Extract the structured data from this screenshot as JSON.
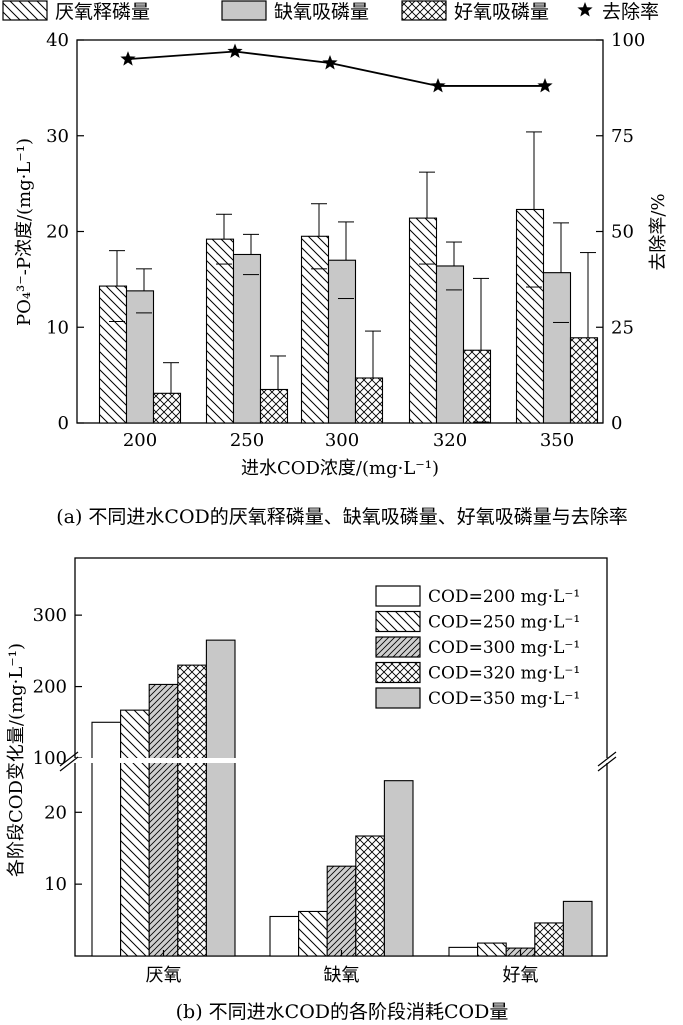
{
  "chart_data": [
    {
      "type": "bar",
      "caption": "(a) 不同进水COD的厌氧释磷量、缺氧吸磷量、好氧吸磷量与去除率",
      "xlabel": "进水COD浓度/(mg·L⁻¹)",
      "ylabel": "PO₄³⁻-P浓度/(mg·L⁻¹)",
      "y2label": "去除率/%",
      "categories": [
        "200",
        "250",
        "300",
        "320",
        "350"
      ],
      "ylim": [
        0,
        40
      ],
      "yticks": [
        0,
        10,
        20,
        30,
        40
      ],
      "y2lim": [
        0,
        100
      ],
      "y2ticks": [
        0,
        25,
        50,
        75,
        100
      ],
      "legend_position": "top",
      "series": [
        {
          "name": "厌氧释磷量",
          "values": [
            14.3,
            19.2,
            19.5,
            21.4,
            22.3
          ],
          "error": [
            3.7,
            2.6,
            3.4,
            4.8,
            8.1
          ],
          "pattern": "diagonal-hatch"
        },
        {
          "name": "缺氧吸磷量",
          "values": [
            13.8,
            17.6,
            17.0,
            16.4,
            15.7
          ],
          "error": [
            2.3,
            2.1,
            4.0,
            2.5,
            5.2
          ],
          "pattern": "gray-fill"
        },
        {
          "name": "好氧吸磷量",
          "values": [
            3.1,
            3.5,
            4.7,
            7.6,
            8.9
          ],
          "error": [
            3.2,
            3.5,
            4.9,
            7.5,
            8.9
          ],
          "pattern": "cross-hatch"
        }
      ],
      "line_series": {
        "name": "去除率",
        "axis": "right",
        "marker": "★",
        "values": [
          95,
          97,
          94,
          88,
          88
        ]
      }
    },
    {
      "type": "bar",
      "caption": "(b) 不同进水COD的各阶段消耗COD量",
      "ylabel": "各阶段COD变化量/(mg·L⁻¹)",
      "categories": [
        "厌氧",
        "缺氧",
        "好氧"
      ],
      "broken_axis": true,
      "lower_ylim": [
        0,
        27
      ],
      "lower_yticks": [
        10,
        20
      ],
      "upper_ylim": [
        100,
        380
      ],
      "upper_yticks": [
        100,
        200,
        300
      ],
      "legend_position": "top-right",
      "series": [
        {
          "name": "COD=200 mg·L⁻¹",
          "values": [
            150,
            5.5,
            1.2
          ],
          "pattern": "white"
        },
        {
          "name": "COD=250 mg·L⁻¹",
          "values": [
            167,
            6.2,
            1.8
          ],
          "pattern": "diagonal-hatch"
        },
        {
          "name": "COD=300 mg·L⁻¹",
          "values": [
            203,
            12.5,
            1.1
          ],
          "pattern": "gray-diagonal"
        },
        {
          "name": "COD=320 mg·L⁻¹",
          "values": [
            230,
            16.7,
            4.6
          ],
          "pattern": "cross-hatch"
        },
        {
          "name": "COD=350 mg·L⁻¹",
          "values": [
            265,
            24.4,
            7.6
          ],
          "pattern": "gray-fill"
        }
      ]
    }
  ]
}
